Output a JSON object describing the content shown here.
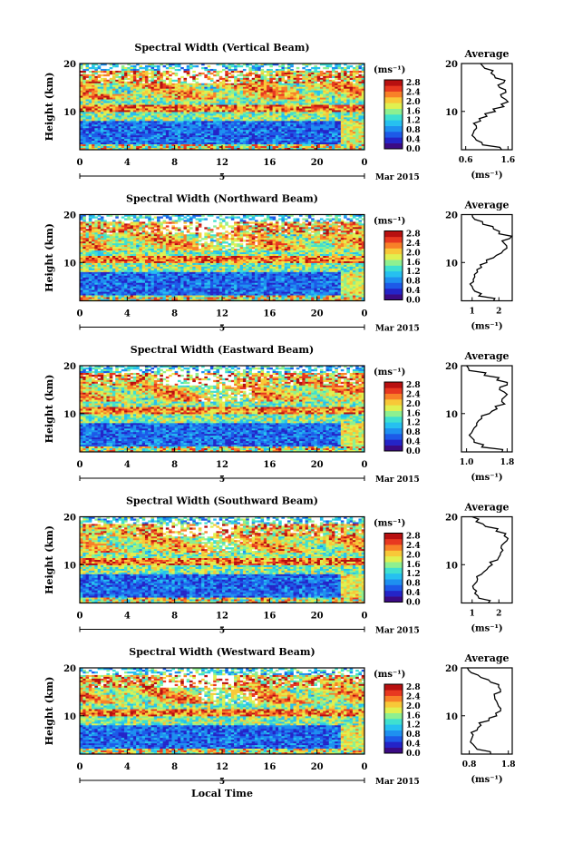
{
  "figure": {
    "xlabel": "Local Time",
    "date_label": "Mar 2015",
    "day_label": "5",
    "units_label": "(ms⁻¹)",
    "avg_title": "Average",
    "avg_xlabel": "(ms⁻¹)",
    "ylabel": "Height (km)",
    "colorbar_ticks": [
      "2.8",
      "2.4",
      "2.0",
      "1.6",
      "1.2",
      "0.8",
      "0.4",
      "0.0"
    ],
    "colormap": [
      "#3b0a84",
      "#2424c8",
      "#1d5ae8",
      "#1e90f0",
      "#26c0f0",
      "#3fe0d0",
      "#8ef090",
      "#e0f050",
      "#f8c838",
      "#f88028",
      "#e83820",
      "#b81010"
    ]
  },
  "chart_data": [
    {
      "type": "heatmap",
      "title": "Spectral Width (Vertical Beam)",
      "x_ticks": [
        "0",
        "4",
        "8",
        "12",
        "16",
        "20",
        "0"
      ],
      "y_ticks": [
        "20",
        "10"
      ],
      "xlim": [
        0,
        24
      ],
      "ylim": [
        2,
        20
      ],
      "avg_profile": {
        "x_ticks": [
          "0.6",
          "1.6"
        ],
        "xlim": [
          0.5,
          1.7
        ],
        "heights": [
          2,
          3,
          4,
          5,
          6,
          7,
          8,
          9,
          10,
          11,
          12,
          13,
          14,
          15,
          16,
          17,
          18,
          19,
          20
        ],
        "values": [
          1.45,
          1.0,
          0.85,
          0.75,
          0.8,
          0.85,
          0.95,
          1.1,
          1.3,
          1.5,
          1.6,
          1.45,
          1.55,
          1.4,
          1.5,
          1.3,
          1.2,
          1.05,
          0.95
        ]
      }
    },
    {
      "type": "heatmap",
      "title": "Spectral Width (Northward Beam)",
      "x_ticks": [
        "0",
        "4",
        "8",
        "12",
        "16",
        "20",
        "0"
      ],
      "y_ticks": [
        "20",
        "10"
      ],
      "xlim": [
        0,
        24
      ],
      "ylim": [
        2,
        20
      ],
      "avg_profile": {
        "x_ticks": [
          "1",
          "2"
        ],
        "xlim": [
          0.6,
          2.5
        ],
        "heights": [
          2,
          3,
          4,
          5,
          6,
          7,
          8,
          9,
          10,
          11,
          12,
          13,
          14,
          15,
          16,
          17,
          18,
          19,
          20
        ],
        "values": [
          1.8,
          1.25,
          1.1,
          1.0,
          1.05,
          1.1,
          1.2,
          1.35,
          1.55,
          1.8,
          2.1,
          2.3,
          2.2,
          2.4,
          2.0,
          1.8,
          1.4,
          1.1,
          1.0
        ]
      }
    },
    {
      "type": "heatmap",
      "title": "Spectral Width (Eastward Beam)",
      "x_ticks": [
        "0",
        "4",
        "8",
        "12",
        "16",
        "20",
        "0"
      ],
      "y_ticks": [
        "20",
        "10"
      ],
      "xlim": [
        0,
        24
      ],
      "ylim": [
        2,
        20
      ],
      "avg_profile": {
        "x_ticks": [
          "1.0",
          "1.8"
        ],
        "xlim": [
          0.9,
          1.9
        ],
        "heights": [
          2,
          3,
          4,
          5,
          6,
          7,
          8,
          9,
          10,
          11,
          12,
          13,
          14,
          15,
          16,
          17,
          18,
          19,
          20
        ],
        "values": [
          1.7,
          1.3,
          1.15,
          1.1,
          1.1,
          1.15,
          1.2,
          1.3,
          1.45,
          1.6,
          1.75,
          1.7,
          1.8,
          1.65,
          1.8,
          1.6,
          1.35,
          1.05,
          1.0
        ]
      }
    },
    {
      "type": "heatmap",
      "title": "Spectral Width (Southward Beam)",
      "x_ticks": [
        "0",
        "4",
        "8",
        "12",
        "16",
        "20",
        "0"
      ],
      "y_ticks": [
        "20",
        "10"
      ],
      "xlim": [
        0,
        24
      ],
      "ylim": [
        2,
        20
      ],
      "avg_profile": {
        "x_ticks": [
          "1",
          "2"
        ],
        "xlim": [
          0.6,
          2.5
        ],
        "heights": [
          2,
          3,
          4,
          5,
          6,
          7,
          8,
          9,
          10,
          11,
          12,
          13,
          14,
          15,
          16,
          17,
          18,
          19,
          20
        ],
        "values": [
          1.6,
          1.25,
          1.1,
          1.05,
          1.1,
          1.2,
          1.35,
          1.55,
          1.75,
          1.95,
          2.05,
          2.15,
          2.1,
          2.3,
          2.2,
          1.9,
          1.5,
          1.15,
          1.0
        ]
      }
    },
    {
      "type": "heatmap",
      "title": "Spectral Width (Westward Beam)",
      "x_ticks": [
        "0",
        "4",
        "8",
        "12",
        "16",
        "20",
        "0"
      ],
      "y_ticks": [
        "20",
        "10"
      ],
      "xlim": [
        0,
        24
      ],
      "ylim": [
        2,
        20
      ],
      "avg_profile": {
        "x_ticks": [
          "0.8",
          "1.8"
        ],
        "xlim": [
          0.6,
          1.9
        ],
        "heights": [
          2,
          3,
          4,
          5,
          6,
          7,
          8,
          9,
          10,
          11,
          12,
          13,
          14,
          15,
          16,
          17,
          18,
          19,
          20
        ],
        "values": [
          1.35,
          1.0,
          0.9,
          0.85,
          0.9,
          1.0,
          1.1,
          1.3,
          1.5,
          1.6,
          1.55,
          1.5,
          1.45,
          1.6,
          1.55,
          1.35,
          1.1,
          0.85,
          0.75
        ]
      }
    }
  ]
}
